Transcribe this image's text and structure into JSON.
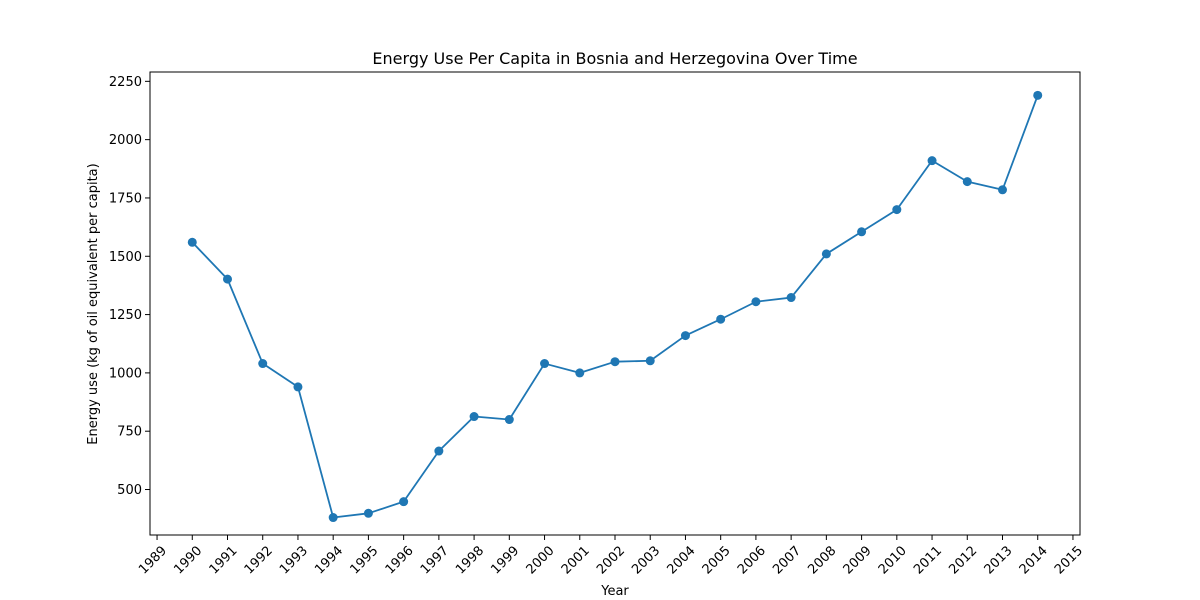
{
  "chart_data": {
    "type": "line",
    "title": "Energy Use Per Capita in Bosnia and Herzegovina Over Time",
    "xlabel": "Year",
    "ylabel": "Energy use (kg of oil equivalent per capita)",
    "xlim": [
      1988.8,
      2015.2
    ],
    "ylim": [
      305,
      2290
    ],
    "x_ticks": [
      1989,
      1990,
      1991,
      1992,
      1993,
      1994,
      1995,
      1996,
      1997,
      1998,
      1999,
      2000,
      2001,
      2002,
      2003,
      2004,
      2005,
      2006,
      2007,
      2008,
      2009,
      2010,
      2011,
      2012,
      2013,
      2014,
      2015
    ],
    "y_ticks": [
      500,
      750,
      1000,
      1250,
      1500,
      1750,
      2000,
      2250
    ],
    "grid": false,
    "series": [
      {
        "color": "#1f77b4",
        "marker": "circle",
        "x": [
          1990,
          1991,
          1992,
          1993,
          1994,
          1995,
          1996,
          1997,
          1998,
          1999,
          2000,
          2001,
          2002,
          2003,
          2004,
          2005,
          2006,
          2007,
          2008,
          2009,
          2010,
          2011,
          2012,
          2013,
          2014
        ],
        "y": [
          1560,
          1402,
          1040,
          940,
          380,
          398,
          448,
          665,
          813,
          800,
          1040,
          1000,
          1048,
          1052,
          1160,
          1230,
          1305,
          1323,
          1510,
          1605,
          1700,
          1910,
          1820,
          1785,
          2190
        ]
      }
    ]
  }
}
